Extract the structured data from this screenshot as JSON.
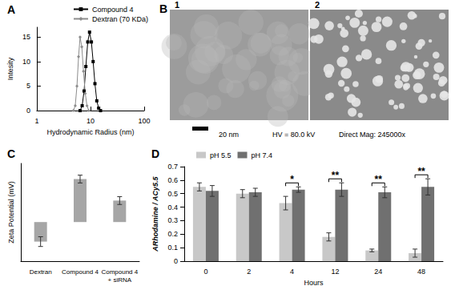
{
  "chart_data": [
    {
      "type": "line",
      "title": "A",
      "x_label": "Hydrodynamic Radius (nm)",
      "y_label": "Intesity",
      "log": "x",
      "xlim": [
        1,
        100
      ],
      "xticks": [
        1,
        10,
        100
      ],
      "ylim": [
        0,
        17
      ],
      "yticks": [
        0,
        5,
        10,
        15
      ],
      "grid": false,
      "legend": "upper right",
      "series": [
        {
          "name": "Compound 4",
          "color": "#000000",
          "marker": "square",
          "x": [
            6.4,
            7.0,
            7.6,
            8.2,
            8.9,
            9.6,
            10.4,
            11.2,
            12.1,
            13.1,
            14.2,
            15.4
          ],
          "values": [
            0,
            1,
            4,
            9,
            14,
            16,
            14,
            10,
            5.5,
            2,
            0.5,
            0
          ]
        },
        {
          "name": "Dextran (70 KDa)",
          "color": "#8c8c8c",
          "marker": "diamond",
          "x": [
            4.8,
            5.2,
            5.6,
            6.0,
            6.4,
            6.9,
            7.4,
            8.0,
            8.6,
            9.3
          ],
          "values": [
            0,
            1,
            5,
            11,
            15,
            13,
            8,
            3.5,
            1,
            0
          ]
        }
      ]
    },
    {
      "type": "bar",
      "title": "C",
      "y_label": "Zeta Potential (mV)",
      "categories": [
        "Dextran",
        "Compound 4",
        "Compound 4\n+ siRNA"
      ],
      "values": [
        -10,
        22,
        11
      ],
      "errors": [
        2.5,
        2,
        2
      ],
      "color": "#a6a6a6",
      "ylim": [
        -20,
        30
      ],
      "tick_labels": "x",
      "grid": false
    },
    {
      "type": "bar",
      "title": "D",
      "x_label": "Hours",
      "y_label": "ARhodamine / ACy5.5",
      "categories": [
        "0",
        "2",
        "4",
        "12",
        "24",
        "48"
      ],
      "series": [
        {
          "name": "pH 5.5",
          "color": "#c8c8c8",
          "values": [
            0.55,
            0.5,
            0.43,
            0.18,
            0.08,
            0.06
          ],
          "errors": [
            0.03,
            0.03,
            0.05,
            0.03,
            0.01,
            0.03
          ]
        },
        {
          "name": "pH 7.4",
          "color": "#707070",
          "values": [
            0.52,
            0.51,
            0.53,
            0.53,
            0.51,
            0.55
          ],
          "errors": [
            0.04,
            0.03,
            0.02,
            0.05,
            0.04,
            0.06
          ]
        }
      ],
      "ylim": [
        0,
        0.7
      ],
      "yticks": [
        0,
        0.1,
        0.2,
        0.3,
        0.4,
        0.5,
        0.6,
        0.7
      ],
      "grid": false,
      "legend": "upper left",
      "annotations": [
        {
          "category": "4",
          "label": "*"
        },
        {
          "category": "12",
          "label": "**"
        },
        {
          "category": "24",
          "label": "**"
        },
        {
          "category": "48",
          "label": "**"
        }
      ]
    }
  ],
  "panel_b": {
    "title": "B",
    "images": [
      "1",
      "2"
    ],
    "scale_bar": "20 nm",
    "caption": [
      "HV = 80.0 kV",
      "Direct Mag: 245000x"
    ]
  }
}
